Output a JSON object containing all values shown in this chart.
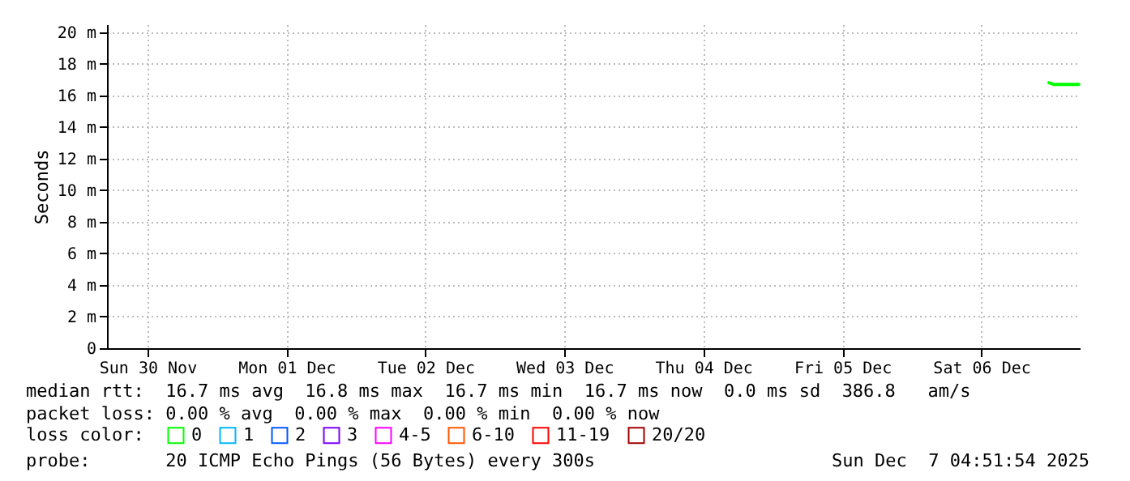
{
  "chart_data": {
    "type": "line",
    "ylabel": "Seconds",
    "x": [
      "2025-12-06T23:40",
      "2025-12-07T00:30",
      "2025-12-07T04:50"
    ],
    "series": [
      {
        "name": "0",
        "color": "#00ff00",
        "values": [
          16.8,
          16.7,
          16.7
        ]
      },
      {
        "name": "1",
        "color": "#00b8ff",
        "values": [
          null,
          null,
          null
        ]
      },
      {
        "name": "2",
        "color": "#0059ff",
        "values": [
          null,
          null,
          null
        ]
      },
      {
        "name": "3",
        "color": "#7e00ff",
        "values": [
          null,
          null,
          null
        ]
      },
      {
        "name": "4-5",
        "color": "#ff00ff",
        "values": [
          null,
          null,
          null
        ]
      },
      {
        "name": "6-10",
        "color": "#ff5500",
        "values": [
          null,
          null,
          null
        ]
      },
      {
        "name": "11-19",
        "color": "#ff0000",
        "values": [
          null,
          null,
          null
        ]
      },
      {
        "name": "20/20",
        "color": "#a10000",
        "values": [
          null,
          null,
          null
        ]
      }
    ],
    "legend_title": "loss color:",
    "legend": "bottom left",
    "xlim": [
      "2025-11-30T05:00",
      "2025-12-07T05:00"
    ],
    "xticks": [
      {
        "value": "2025-11-30T12:00",
        "label": "Sun 30 Nov"
      },
      {
        "value": "2025-12-01T12:00",
        "label": "Mon 01 Dec"
      },
      {
        "value": "2025-12-02T12:00",
        "label": "Tue 02 Dec"
      },
      {
        "value": "2025-12-03T12:00",
        "label": "Wed 03 Dec"
      },
      {
        "value": "2025-12-04T12:00",
        "label": "Thu 04 Dec"
      },
      {
        "value": "2025-12-05T12:00",
        "label": "Fri 05 Dec"
      },
      {
        "value": "2025-12-06T12:00",
        "label": "Sat 06 Dec"
      }
    ],
    "ylim": [
      0,
      20.5
    ],
    "yticks": [
      {
        "value": 0,
        "label": "0"
      },
      {
        "value": 2,
        "label": "2 m"
      },
      {
        "value": 4,
        "label": "4 m"
      },
      {
        "value": 6,
        "label": "6 m"
      },
      {
        "value": 8,
        "label": "8 m"
      },
      {
        "value": 10,
        "label": "10 m"
      },
      {
        "value": 12,
        "label": "12 m"
      },
      {
        "value": 14,
        "label": "14 m"
      },
      {
        "value": 16,
        "label": "16 m"
      },
      {
        "value": 18,
        "label": "18 m"
      },
      {
        "value": 20,
        "label": "20 m"
      }
    ],
    "grid": true,
    "marker": "none",
    "line_style": "solid",
    "annotations": [
      "median rtt:  16.7 ms avg  16.8 ms max  16.7 ms min  16.7 ms now  0.0 ms sd  386.8   am/s",
      "packet loss: 0.00 % avg  0.00 % max  0.00 % min  0.00 % now",
      "probe:       20 ICMP Echo Pings (56 Bytes) every 300s",
      "Sun Dec  7 04:51:54 2025"
    ]
  }
}
